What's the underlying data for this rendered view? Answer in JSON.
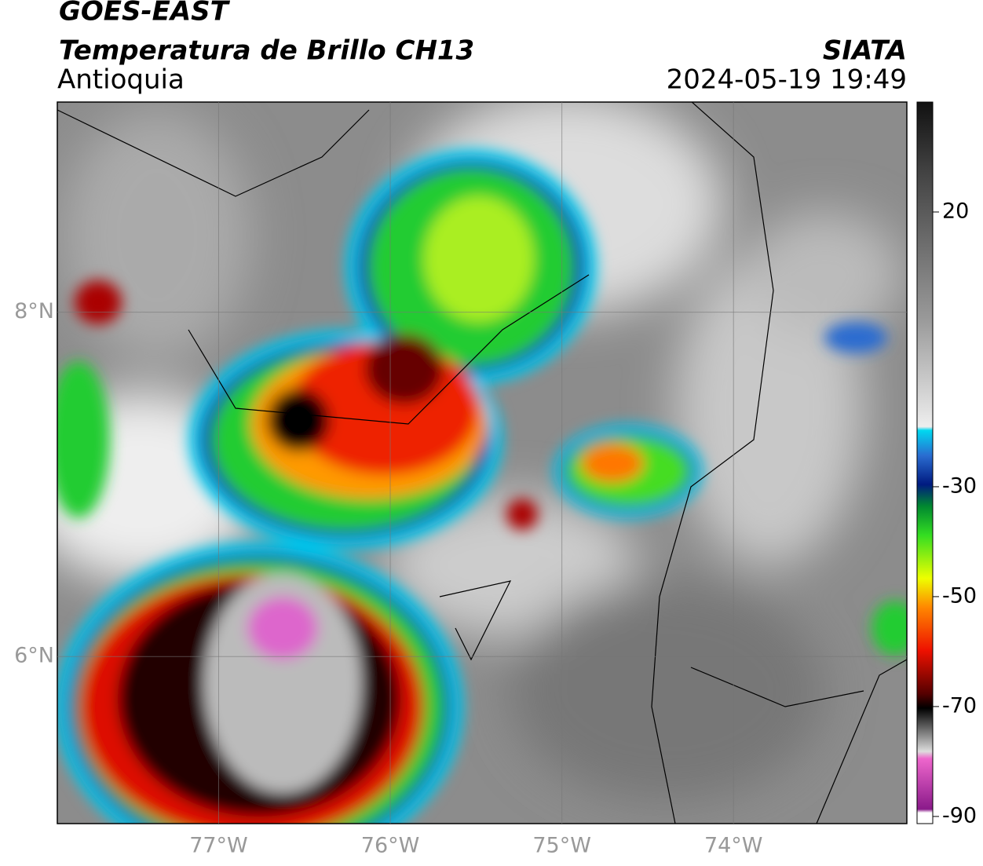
{
  "header": {
    "title": "GOES-EAST",
    "subtitle": "Temperatura de Brillo CH13",
    "region": "Antioquia",
    "source": "SIATA",
    "datetime": "2024-05-19 19:49"
  },
  "map": {
    "lonlim": [
      -77.94,
      -72.99
    ],
    "latlim": [
      5.03,
      9.22
    ],
    "lonticks": [
      {
        "value": -77,
        "label": "77°W"
      },
      {
        "value": -76,
        "label": "76°W"
      },
      {
        "value": -75,
        "label": "75°W"
      },
      {
        "value": -74,
        "label": "74°W"
      }
    ],
    "latticks": [
      {
        "value": 8,
        "label": "8°N"
      },
      {
        "value": 6,
        "label": "6°N"
      }
    ]
  },
  "colorbar": {
    "lim": [
      -91.3,
      40
    ],
    "ticks": [
      20,
      -30,
      -50,
      -70,
      -90
    ]
  }
}
